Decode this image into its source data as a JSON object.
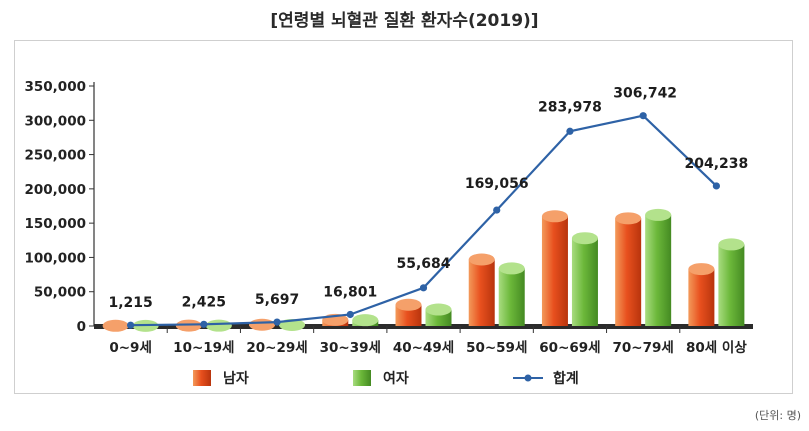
{
  "chart_data": {
    "type": "bar",
    "title": "[연령별 뇌혈관 질환 환자수(2019)]",
    "categories": [
      "0~9세",
      "10~19세",
      "20~29세",
      "30~39세",
      "40~49세",
      "50~59세",
      "60~69세",
      "70~79세",
      "80세 이상"
    ],
    "series": [
      {
        "name": "남자",
        "type": "bar",
        "color": "#e8501e",
        "values": [
          300,
          600,
          1800,
          9000,
          31000,
          97000,
          160000,
          157000,
          83000
        ]
      },
      {
        "name": "여자",
        "type": "bar",
        "color": "#6cb83a",
        "values": [
          200,
          500,
          1500,
          8500,
          24000,
          84000,
          128000,
          162000,
          119000
        ]
      },
      {
        "name": "합계",
        "type": "line",
        "color": "#2e62a6",
        "values": [
          1215,
          2425,
          5697,
          16801,
          55684,
          169056,
          283978,
          306742,
          204238
        ]
      }
    ],
    "data_labels": [
      "1,215",
      "2,425",
      "5,697",
      "16,801",
      "55,684",
      "169,056",
      "283,978",
      "306,742",
      "204,238"
    ],
    "y_ticks": [
      "0",
      "50,000",
      "100,000",
      "150,000",
      "200,000",
      "250,000",
      "300,000",
      "350,000"
    ],
    "ylim": [
      0,
      350000
    ],
    "xlabel": "",
    "ylabel": "",
    "legend": "bottom",
    "unit_note": "(단위: 명)"
  }
}
